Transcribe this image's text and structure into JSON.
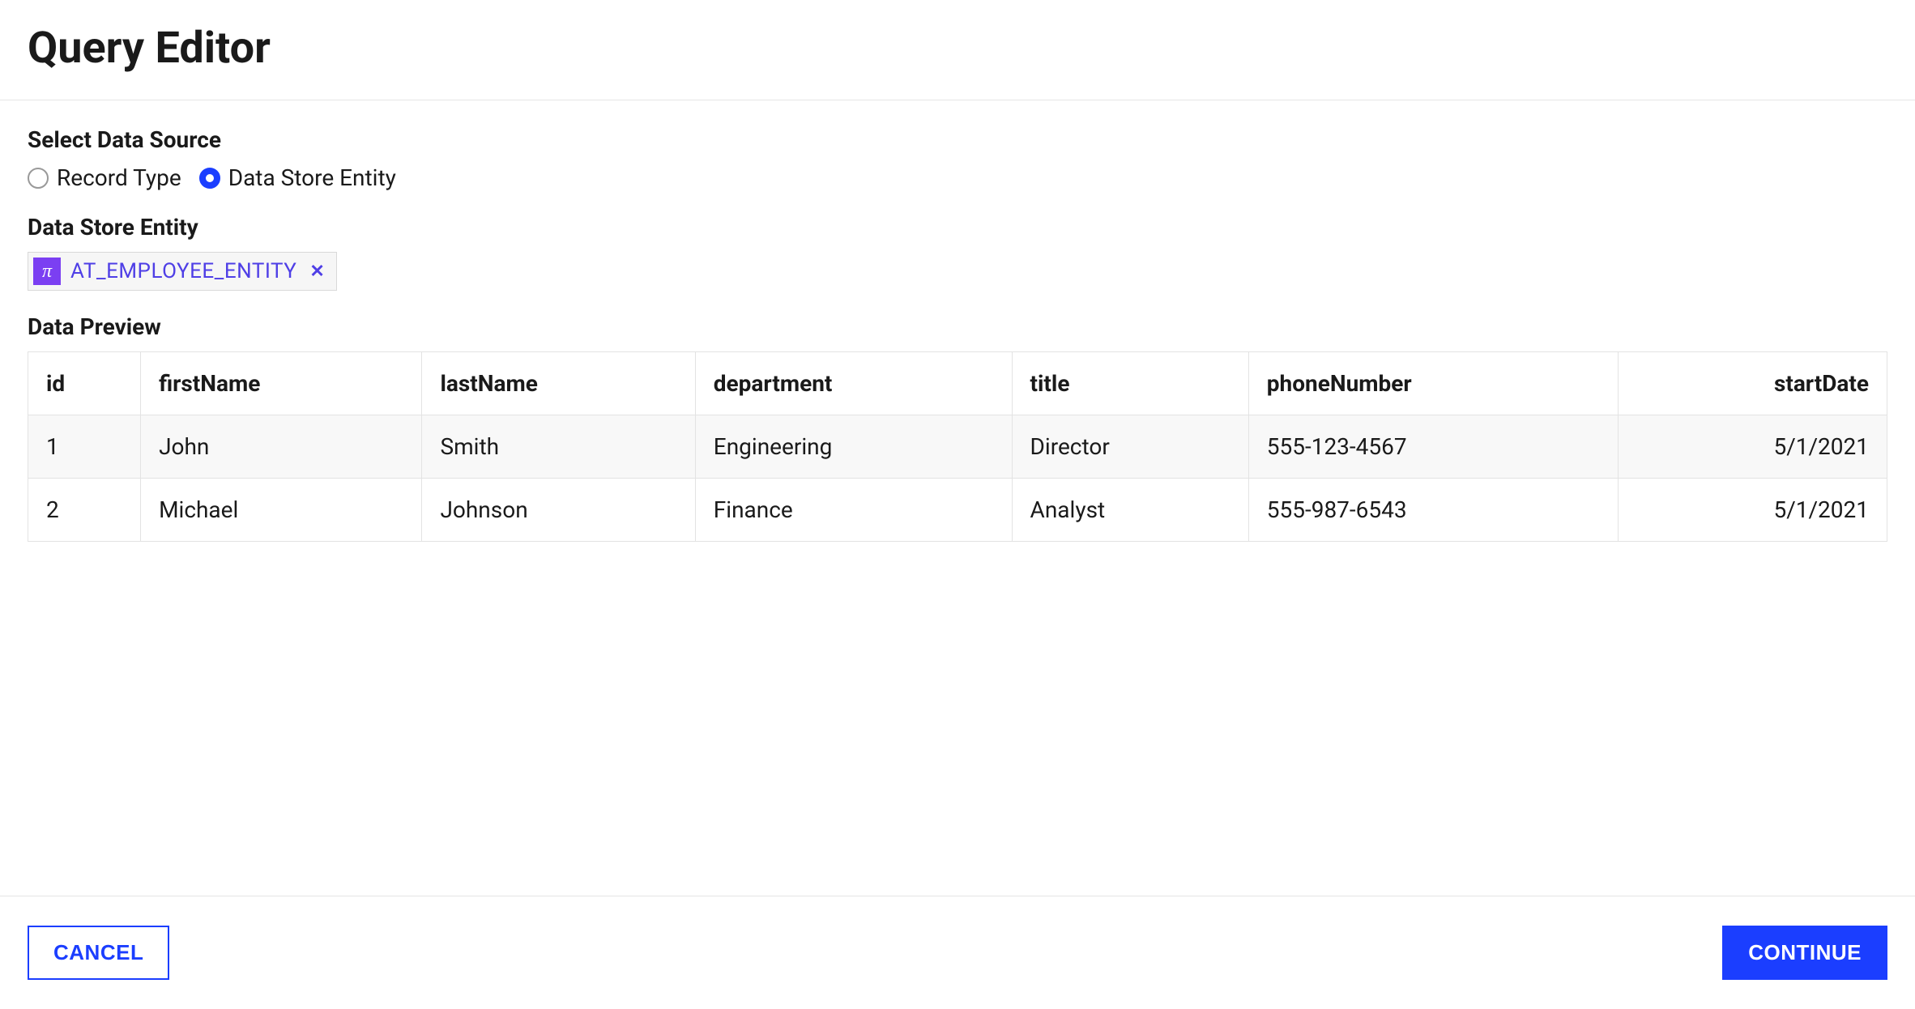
{
  "header": {
    "title": "Query Editor"
  },
  "dataSource": {
    "label": "Select Data Source",
    "options": [
      {
        "label": "Record Type",
        "selected": false
      },
      {
        "label": "Data Store Entity",
        "selected": true
      }
    ]
  },
  "entity": {
    "label": "Data Store Entity",
    "iconGlyph": "π",
    "name": "AT_EMPLOYEE_ENTITY",
    "iconBg": "#7b3ff2",
    "textColor": "#4f3fe6"
  },
  "preview": {
    "label": "Data Preview",
    "columns": [
      {
        "key": "id",
        "label": "id",
        "align": "left"
      },
      {
        "key": "firstName",
        "label": "firstName",
        "align": "left"
      },
      {
        "key": "lastName",
        "label": "lastName",
        "align": "left"
      },
      {
        "key": "department",
        "label": "department",
        "align": "left"
      },
      {
        "key": "title",
        "label": "title",
        "align": "left"
      },
      {
        "key": "phoneNumber",
        "label": "phoneNumber",
        "align": "left"
      },
      {
        "key": "startDate",
        "label": "startDate",
        "align": "right"
      }
    ],
    "rows": [
      [
        "1",
        "John",
        "Smith",
        "Engineering",
        "Director",
        "555-123-4567",
        "5/1/2021"
      ],
      [
        "2",
        "Michael",
        "Johnson",
        "Finance",
        "Analyst",
        "555-987-6543",
        "5/1/2021"
      ]
    ]
  },
  "footer": {
    "cancel": "CANCEL",
    "continue": "CONTINUE"
  },
  "colors": {
    "primary": "#1b3eff",
    "border": "#e5e5e5",
    "tableBorder": "#e3e3e3",
    "rowAlt": "#f8f8f8"
  }
}
